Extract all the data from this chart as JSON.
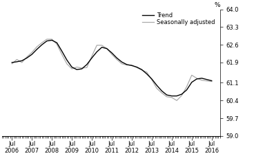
{
  "ylabel": "%",
  "ylim": [
    59.0,
    64.0
  ],
  "ytick_vals": [
    59.0,
    59.7,
    60.4,
    61.1,
    61.9,
    62.6,
    63.3,
    64.0
  ],
  "ytick_labels": [
    "59.0",
    "59.7",
    "60.4",
    "61.1",
    "61.9",
    "62.6",
    "63.3",
    "64.0"
  ],
  "xtick_years": [
    2006,
    2007,
    2008,
    2009,
    2010,
    2011,
    2012,
    2013,
    2014,
    2015,
    2016
  ],
  "xlim": [
    2006.25,
    2016.75
  ],
  "trend_color": "#000000",
  "seasonal_color": "#aaaaaa",
  "background_color": "#ffffff",
  "legend_trend": "Trend",
  "legend_seasonal": "Seasonally adjusted",
  "trend_data": [
    [
      2006.5,
      61.9
    ],
    [
      2006.75,
      61.93
    ],
    [
      2007.0,
      61.97
    ],
    [
      2007.25,
      62.08
    ],
    [
      2007.5,
      62.22
    ],
    [
      2007.75,
      62.42
    ],
    [
      2008.0,
      62.6
    ],
    [
      2008.25,
      62.75
    ],
    [
      2008.5,
      62.78
    ],
    [
      2008.75,
      62.68
    ],
    [
      2009.0,
      62.35
    ],
    [
      2009.25,
      62.0
    ],
    [
      2009.5,
      61.72
    ],
    [
      2009.75,
      61.62
    ],
    [
      2010.0,
      61.65
    ],
    [
      2010.25,
      61.82
    ],
    [
      2010.5,
      62.08
    ],
    [
      2010.75,
      62.32
    ],
    [
      2011.0,
      62.5
    ],
    [
      2011.25,
      62.45
    ],
    [
      2011.5,
      62.28
    ],
    [
      2011.75,
      62.08
    ],
    [
      2012.0,
      61.92
    ],
    [
      2012.25,
      61.82
    ],
    [
      2012.5,
      61.78
    ],
    [
      2012.75,
      61.72
    ],
    [
      2013.0,
      61.62
    ],
    [
      2013.25,
      61.45
    ],
    [
      2013.5,
      61.25
    ],
    [
      2013.75,
      61.0
    ],
    [
      2014.0,
      60.78
    ],
    [
      2014.25,
      60.62
    ],
    [
      2014.5,
      60.58
    ],
    [
      2014.75,
      60.58
    ],
    [
      2015.0,
      60.65
    ],
    [
      2015.25,
      60.82
    ],
    [
      2015.5,
      61.12
    ],
    [
      2015.75,
      61.25
    ],
    [
      2016.0,
      61.28
    ],
    [
      2016.5,
      61.18
    ]
  ],
  "seasonal_data": [
    [
      2006.5,
      61.85
    ],
    [
      2006.75,
      62.02
    ],
    [
      2007.0,
      61.9
    ],
    [
      2007.25,
      62.12
    ],
    [
      2007.5,
      62.3
    ],
    [
      2007.75,
      62.52
    ],
    [
      2008.0,
      62.68
    ],
    [
      2008.25,
      62.82
    ],
    [
      2008.5,
      62.82
    ],
    [
      2008.75,
      62.62
    ],
    [
      2009.0,
      62.22
    ],
    [
      2009.25,
      61.85
    ],
    [
      2009.5,
      61.65
    ],
    [
      2009.75,
      61.72
    ],
    [
      2010.0,
      61.68
    ],
    [
      2010.25,
      61.7
    ],
    [
      2010.5,
      62.15
    ],
    [
      2010.75,
      62.58
    ],
    [
      2011.0,
      62.58
    ],
    [
      2011.25,
      62.45
    ],
    [
      2011.5,
      62.22
    ],
    [
      2011.75,
      62.02
    ],
    [
      2012.0,
      61.85
    ],
    [
      2012.25,
      61.8
    ],
    [
      2012.5,
      61.8
    ],
    [
      2012.75,
      61.7
    ],
    [
      2013.0,
      61.6
    ],
    [
      2013.25,
      61.52
    ],
    [
      2013.5,
      61.22
    ],
    [
      2013.75,
      60.88
    ],
    [
      2014.0,
      60.7
    ],
    [
      2014.25,
      60.55
    ],
    [
      2014.5,
      60.52
    ],
    [
      2014.75,
      60.4
    ],
    [
      2015.0,
      60.6
    ],
    [
      2015.25,
      60.95
    ],
    [
      2015.5,
      61.4
    ],
    [
      2015.75,
      61.28
    ],
    [
      2016.0,
      61.2
    ],
    [
      2016.5,
      61.15
    ]
  ]
}
